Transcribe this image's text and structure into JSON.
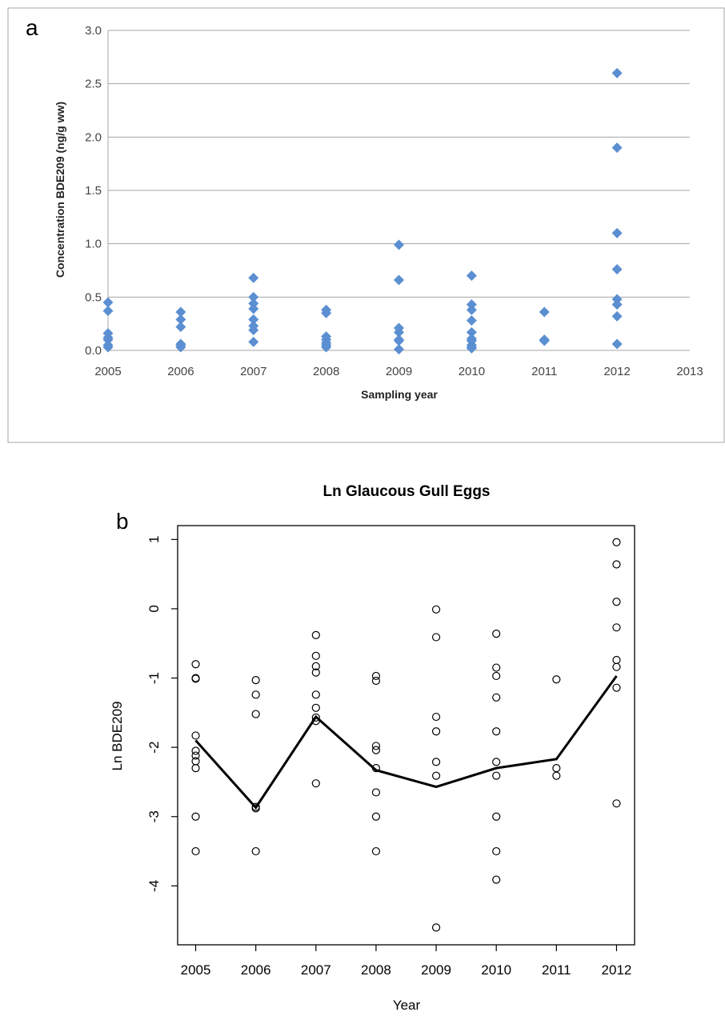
{
  "chart_data": [
    {
      "type": "scatter",
      "panel_label": "a",
      "title": "",
      "xlabel": "Sampling year",
      "ylabel": "Concentration BDE209 (ng/g ww)",
      "xlim": [
        2005,
        2013
      ],
      "ylim": [
        0,
        3.0
      ],
      "x_ticks": [
        "2005",
        "2006",
        "2007",
        "2008",
        "2009",
        "2010",
        "2011",
        "2012",
        "2013"
      ],
      "y_ticks": [
        "0.0",
        "0.5",
        "1.0",
        "1.5",
        "2.0",
        "2.5",
        "3.0"
      ],
      "grid": true,
      "marker": "diamond",
      "color": "#5B8FD1",
      "points": [
        {
          "x": 2005,
          "y": 0.45
        },
        {
          "x": 2005,
          "y": 0.37
        },
        {
          "x": 2005,
          "y": 0.16
        },
        {
          "x": 2005,
          "y": 0.12
        },
        {
          "x": 2005,
          "y": 0.1
        },
        {
          "x": 2005,
          "y": 0.05
        },
        {
          "x": 2005,
          "y": 0.03
        },
        {
          "x": 2006,
          "y": 0.36
        },
        {
          "x": 2006,
          "y": 0.29
        },
        {
          "x": 2006,
          "y": 0.22
        },
        {
          "x": 2006,
          "y": 0.06
        },
        {
          "x": 2006,
          "y": 0.05
        },
        {
          "x": 2006,
          "y": 0.03
        },
        {
          "x": 2007,
          "y": 0.68
        },
        {
          "x": 2007,
          "y": 0.5
        },
        {
          "x": 2007,
          "y": 0.44
        },
        {
          "x": 2007,
          "y": 0.39
        },
        {
          "x": 2007,
          "y": 0.29
        },
        {
          "x": 2007,
          "y": 0.23
        },
        {
          "x": 2007,
          "y": 0.19
        },
        {
          "x": 2007,
          "y": 0.08
        },
        {
          "x": 2008,
          "y": 0.38
        },
        {
          "x": 2008,
          "y": 0.35
        },
        {
          "x": 2008,
          "y": 0.13
        },
        {
          "x": 2008,
          "y": 0.1
        },
        {
          "x": 2008,
          "y": 0.07
        },
        {
          "x": 2008,
          "y": 0.05
        },
        {
          "x": 2008,
          "y": 0.03
        },
        {
          "x": 2009,
          "y": 0.99
        },
        {
          "x": 2009,
          "y": 0.66
        },
        {
          "x": 2009,
          "y": 0.21
        },
        {
          "x": 2009,
          "y": 0.17
        },
        {
          "x": 2009,
          "y": 0.1
        },
        {
          "x": 2009,
          "y": 0.09
        },
        {
          "x": 2009,
          "y": 0.01
        },
        {
          "x": 2010,
          "y": 0.7
        },
        {
          "x": 2010,
          "y": 0.43
        },
        {
          "x": 2010,
          "y": 0.38
        },
        {
          "x": 2010,
          "y": 0.28
        },
        {
          "x": 2010,
          "y": 0.17
        },
        {
          "x": 2010,
          "y": 0.11
        },
        {
          "x": 2010,
          "y": 0.09
        },
        {
          "x": 2010,
          "y": 0.05
        },
        {
          "x": 2010,
          "y": 0.03
        },
        {
          "x": 2010,
          "y": 0.02
        },
        {
          "x": 2011,
          "y": 0.36
        },
        {
          "x": 2011,
          "y": 0.1
        },
        {
          "x": 2011,
          "y": 0.09
        },
        {
          "x": 2012,
          "y": 2.6
        },
        {
          "x": 2012,
          "y": 1.9
        },
        {
          "x": 2012,
          "y": 1.1
        },
        {
          "x": 2012,
          "y": 0.76
        },
        {
          "x": 2012,
          "y": 0.48
        },
        {
          "x": 2012,
          "y": 0.43
        },
        {
          "x": 2012,
          "y": 0.32
        },
        {
          "x": 2012,
          "y": 0.06
        }
      ]
    },
    {
      "type": "scatter",
      "panel_label": "b",
      "title": "Ln Glaucous Gull Eggs",
      "xlabel": "Year",
      "ylabel": "Ln BDE209",
      "xlim": [
        2004.7,
        2012.3
      ],
      "ylim": [
        -4.85,
        1.2
      ],
      "x_ticks": [
        "2005",
        "2006",
        "2007",
        "2008",
        "2009",
        "2010",
        "2011",
        "2012"
      ],
      "y_ticks": [
        "1",
        "0",
        "-1",
        "-2",
        "-3",
        "-4"
      ],
      "grid": false,
      "marker": "open-circle",
      "points": [
        {
          "x": 2005,
          "y": -0.8
        },
        {
          "x": 2005,
          "y": -1.0
        },
        {
          "x": 2005,
          "y": -1.01
        },
        {
          "x": 2005,
          "y": -1.83
        },
        {
          "x": 2005,
          "y": -2.05
        },
        {
          "x": 2005,
          "y": -2.12
        },
        {
          "x": 2005,
          "y": -2.2
        },
        {
          "x": 2005,
          "y": -2.3
        },
        {
          "x": 2005,
          "y": -3.0
        },
        {
          "x": 2005,
          "y": -3.5
        },
        {
          "x": 2006,
          "y": -1.03
        },
        {
          "x": 2006,
          "y": -1.24
        },
        {
          "x": 2006,
          "y": -1.52
        },
        {
          "x": 2006,
          "y": -2.86
        },
        {
          "x": 2006,
          "y": -2.88
        },
        {
          "x": 2006,
          "y": -3.5
        },
        {
          "x": 2007,
          "y": -0.38
        },
        {
          "x": 2007,
          "y": -0.68
        },
        {
          "x": 2007,
          "y": -0.83
        },
        {
          "x": 2007,
          "y": -0.92
        },
        {
          "x": 2007,
          "y": -1.24
        },
        {
          "x": 2007,
          "y": -1.43
        },
        {
          "x": 2007,
          "y": -1.57
        },
        {
          "x": 2007,
          "y": -1.62
        },
        {
          "x": 2007,
          "y": -2.52
        },
        {
          "x": 2008,
          "y": -0.97
        },
        {
          "x": 2008,
          "y": -1.04
        },
        {
          "x": 2008,
          "y": -1.98
        },
        {
          "x": 2008,
          "y": -2.04
        },
        {
          "x": 2008,
          "y": -2.3
        },
        {
          "x": 2008,
          "y": -2.65
        },
        {
          "x": 2008,
          "y": -3.0
        },
        {
          "x": 2008,
          "y": -3.5
        },
        {
          "x": 2009,
          "y": -0.01
        },
        {
          "x": 2009,
          "y": -0.41
        },
        {
          "x": 2009,
          "y": -1.56
        },
        {
          "x": 2009,
          "y": -1.77
        },
        {
          "x": 2009,
          "y": -2.21
        },
        {
          "x": 2009,
          "y": -2.41
        },
        {
          "x": 2009,
          "y": -4.6
        },
        {
          "x": 2010,
          "y": -0.36
        },
        {
          "x": 2010,
          "y": -0.85
        },
        {
          "x": 2010,
          "y": -0.97
        },
        {
          "x": 2010,
          "y": -1.28
        },
        {
          "x": 2010,
          "y": -1.77
        },
        {
          "x": 2010,
          "y": -2.21
        },
        {
          "x": 2010,
          "y": -2.41
        },
        {
          "x": 2010,
          "y": -3.0
        },
        {
          "x": 2010,
          "y": -3.5
        },
        {
          "x": 2010,
          "y": -3.91
        },
        {
          "x": 2011,
          "y": -1.02
        },
        {
          "x": 2011,
          "y": -2.3
        },
        {
          "x": 2011,
          "y": -2.41
        },
        {
          "x": 2012,
          "y": 0.96
        },
        {
          "x": 2012,
          "y": 0.64
        },
        {
          "x": 2012,
          "y": 0.1
        },
        {
          "x": 2012,
          "y": -0.27
        },
        {
          "x": 2012,
          "y": -0.74
        },
        {
          "x": 2012,
          "y": -0.84
        },
        {
          "x": 2012,
          "y": -1.14
        },
        {
          "x": 2012,
          "y": -2.81
        }
      ],
      "series": [
        {
          "type": "line",
          "x": [
            2005,
            2006,
            2007,
            2008,
            2009,
            2010,
            2011,
            2012
          ],
          "values": [
            -1.9,
            -2.87,
            -1.56,
            -2.33,
            -2.57,
            -2.3,
            -2.17,
            -0.97
          ]
        }
      ]
    }
  ]
}
